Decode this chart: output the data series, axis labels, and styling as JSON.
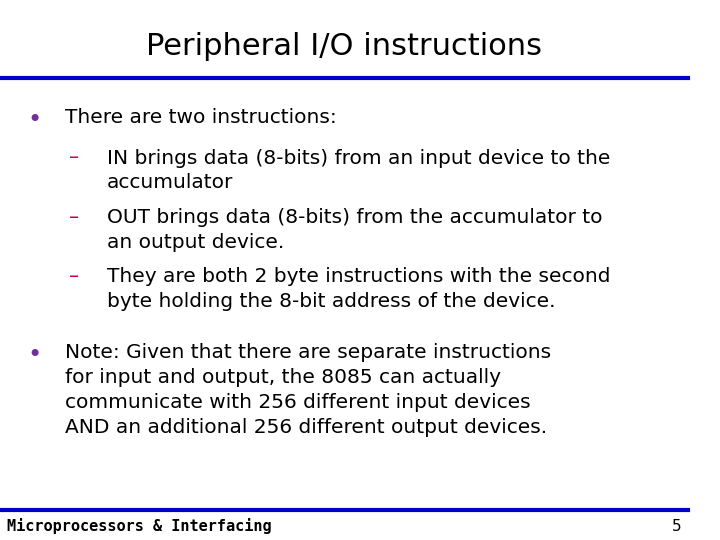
{
  "title": "Peripheral I/O instructions",
  "title_fontsize": 22,
  "title_font": "DejaVu Sans",
  "background_color": "#ffffff",
  "title_color": "#000000",
  "line_color": "#0000cc",
  "bullet_color": "#7030a0",
  "dash_color": "#cc0044",
  "text_color": "#000000",
  "footer_text": "Microprocessors & Interfacing",
  "footer_page": "5",
  "bullet1_header": "There are two instructions:",
  "sub_bullets": [
    "IN brings data (8-bits) from an input device to the\naccumulator",
    "OUT brings data (8-bits) from the accumulator to\nan output device.",
    "They are both 2 byte instructions with the second\nbyte holding the 8-bit address of the device."
  ],
  "bullet2_text": "Note: Given that there are separate instructions\nfor input and output, the 8085 can actually\ncommunicate with 256 different input devices\nAND an additional 256 different output devices.",
  "body_fontsize": 14.5,
  "footer_fontsize": 11
}
